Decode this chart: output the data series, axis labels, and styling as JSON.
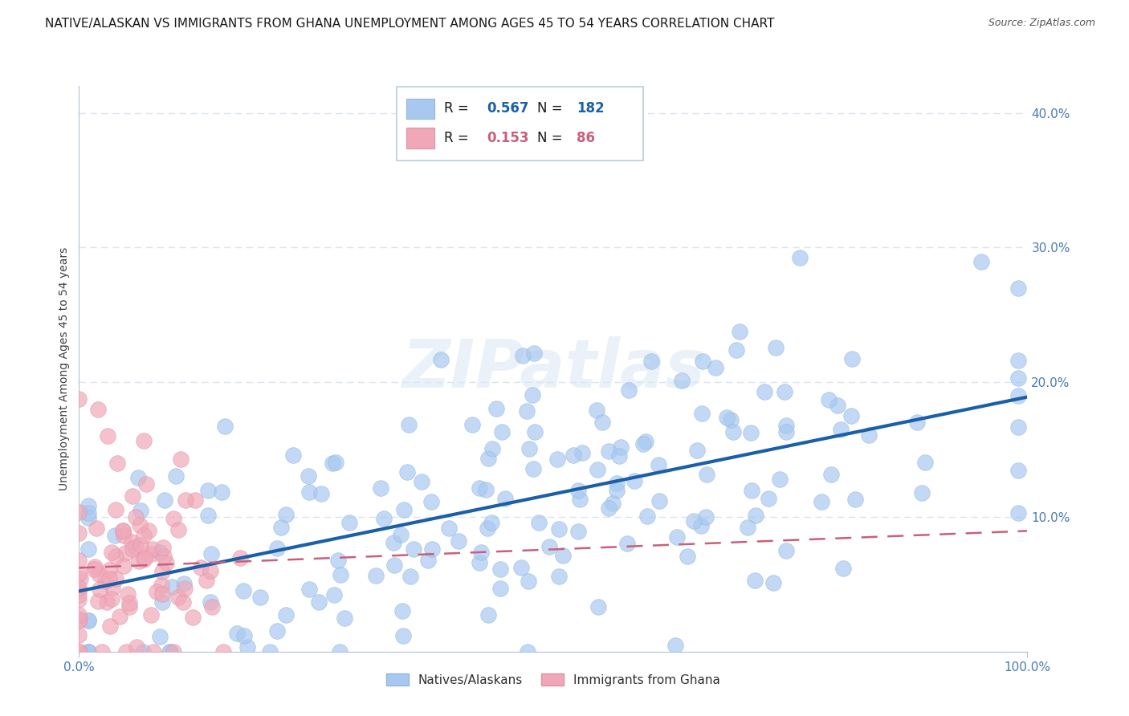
{
  "title": "NATIVE/ALASKAN VS IMMIGRANTS FROM GHANA UNEMPLOYMENT AMONG AGES 45 TO 54 YEARS CORRELATION CHART",
  "source": "Source: ZipAtlas.com",
  "ylabel": "Unemployment Among Ages 45 to 54 years",
  "xlim": [
    0,
    1.0
  ],
  "ylim": [
    0,
    0.42
  ],
  "xticks": [
    0.0,
    1.0
  ],
  "xticklabels": [
    "0.0%",
    "100.0%"
  ],
  "yticks": [
    0.0,
    0.1,
    0.2,
    0.3,
    0.4
  ],
  "yticklabels": [
    "",
    "10.0%",
    "20.0%",
    "30.0%",
    "40.0%"
  ],
  "native_R": 0.567,
  "native_N": 182,
  "ghana_R": 0.153,
  "ghana_N": 86,
  "native_color": "#a8c8f0",
  "native_line_color": "#1a5fa8",
  "ghana_color": "#f0a8b8",
  "ghana_line_color": "#c8607a",
  "watermark": "ZIPatlas",
  "watermark_color": "#c8d8e8",
  "title_fontsize": 11,
  "tick_fontsize": 11,
  "ylabel_fontsize": 10,
  "background_color": "#ffffff",
  "grid_color": "#d8e4f0"
}
